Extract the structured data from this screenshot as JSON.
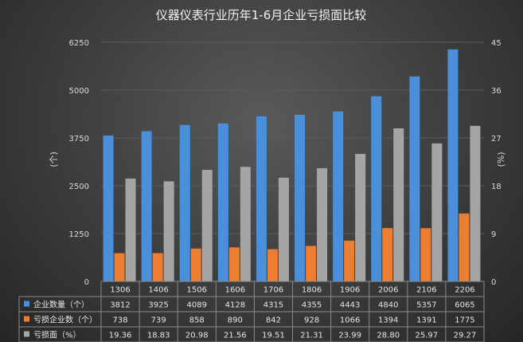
{
  "chart_data": {
    "type": "bar",
    "title": "仪器仪表行业历年1-6月企业亏损面比较",
    "categories": [
      "1306",
      "1406",
      "1506",
      "1606",
      "1706",
      "1806",
      "1906",
      "2006",
      "2106",
      "2206"
    ],
    "ylabel_left": "(个)",
    "ylabel_right": "(%)",
    "ylim_left": [
      0,
      6250
    ],
    "yticks_left": [
      "0",
      "1250",
      "2500",
      "3750",
      "5000",
      "6250"
    ],
    "ylim_right": [
      0,
      45
    ],
    "yticks_right": [
      "0",
      "9",
      "18",
      "27",
      "36",
      "45"
    ],
    "grid": true,
    "legend": "table-bottom",
    "series": [
      {
        "name": "企业数量（个）",
        "axis": "left",
        "color": "#4a8fd9",
        "values": [
          3812,
          3925,
          4089,
          4128,
          4315,
          4355,
          4443,
          4840,
          5357,
          6065
        ],
        "labels": [
          "3812",
          "3925",
          "4089",
          "4128",
          "4315",
          "4355",
          "4443",
          "4840",
          "5357",
          "6065"
        ]
      },
      {
        "name": "亏损企业数（个）",
        "axis": "left",
        "color": "#ed7d31",
        "values": [
          738,
          739,
          858,
          890,
          842,
          928,
          1066,
          1394,
          1391,
          1775
        ],
        "labels": [
          "738",
          "739",
          "858",
          "890",
          "842",
          "928",
          "1066",
          "1394",
          "1391",
          "1775"
        ]
      },
      {
        "name": "亏损面（%）",
        "axis": "right",
        "color": "#a5a5a5",
        "values": [
          19.36,
          18.83,
          20.98,
          21.56,
          19.51,
          21.31,
          23.99,
          28.8,
          25.97,
          29.27
        ],
        "labels": [
          "19.36",
          "18.83",
          "20.98",
          "21.56",
          "19.51",
          "21.31",
          "23.99",
          "28.80",
          "25.97",
          "29.27"
        ]
      }
    ]
  }
}
